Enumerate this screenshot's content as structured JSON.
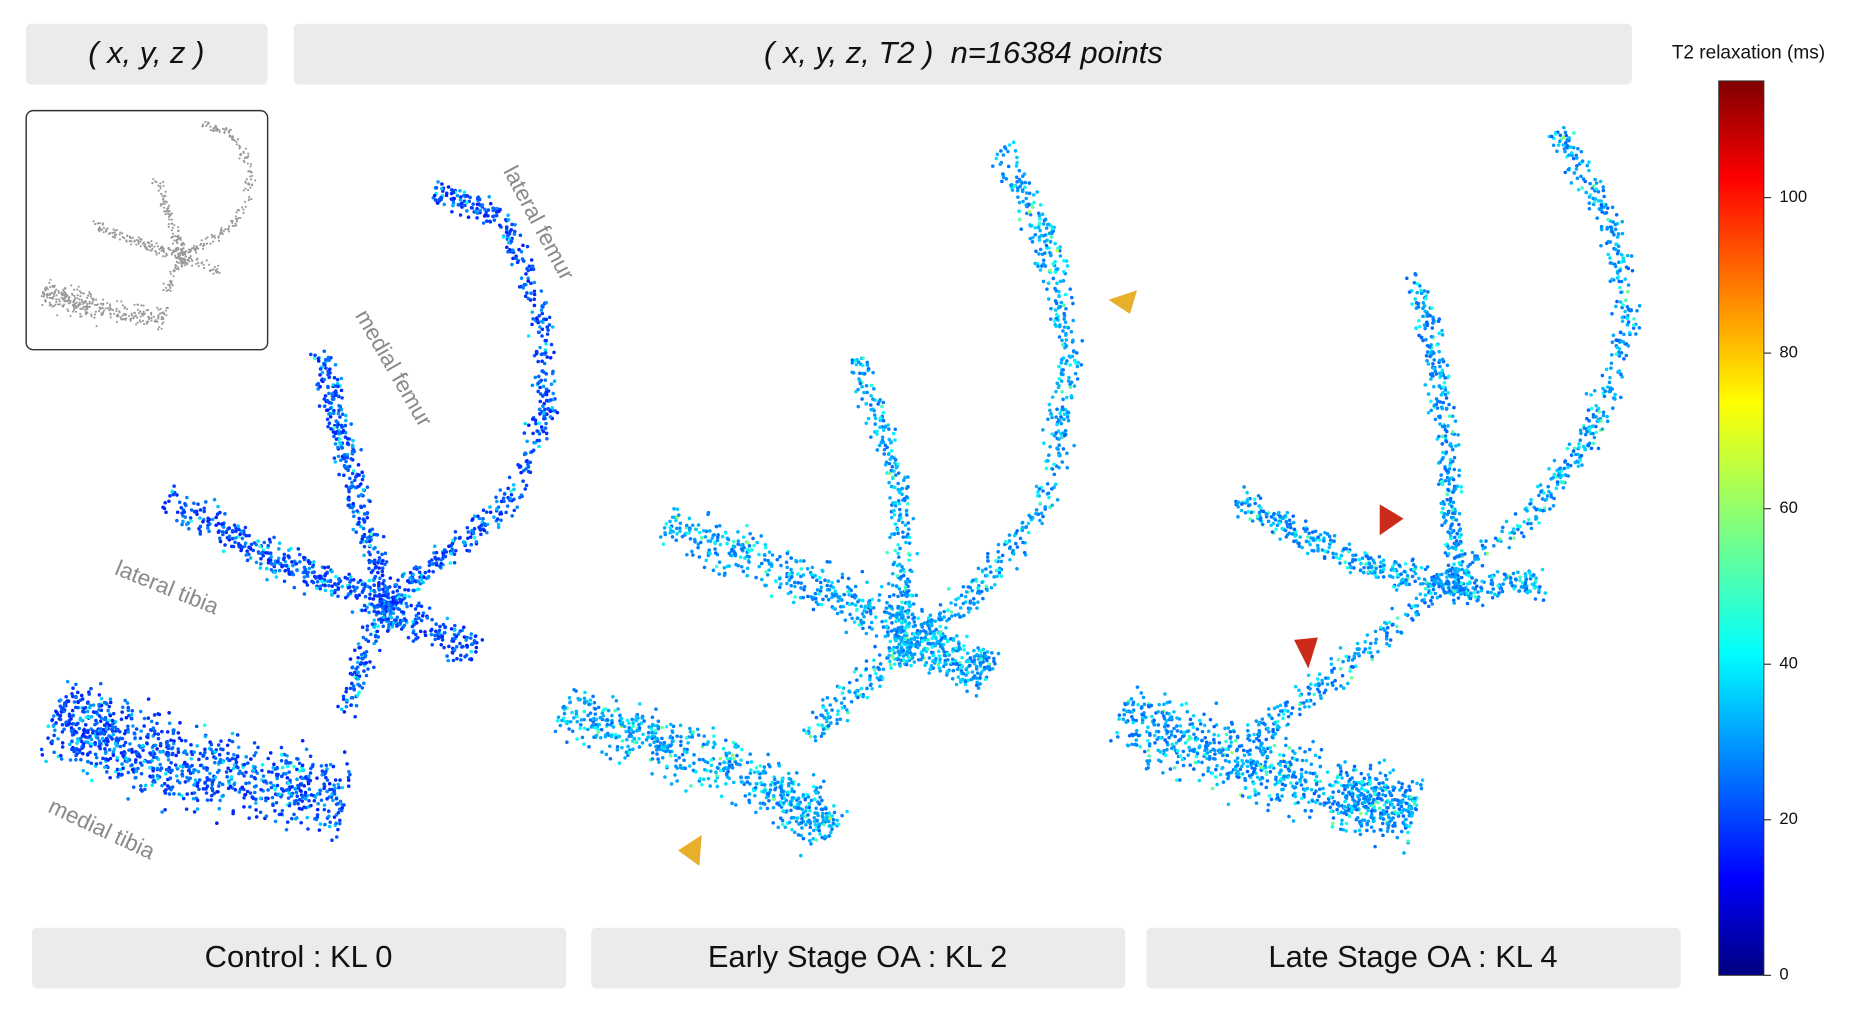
{
  "header": {
    "xyz_label": "( x, y, z )",
    "xyzt2_label": "( x, y, z, T2 )  n=16384 points"
  },
  "colorbar": {
    "title": "T2 relaxation (ms)",
    "lim": [
      0,
      115
    ],
    "ticks": [
      0,
      20,
      40,
      60,
      80,
      100
    ]
  },
  "annotations": {
    "lateral_femur": "lateral femur",
    "medial_femur": "medial femur",
    "lateral_tibia": "lateral tibia",
    "medial_tibia": "medial tibia"
  },
  "panels": [
    {
      "label": "Control : KL 0"
    },
    {
      "label": "Early Stage OA : KL 2"
    },
    {
      "label": "Late Stage OA : KL 4"
    }
  ]
}
